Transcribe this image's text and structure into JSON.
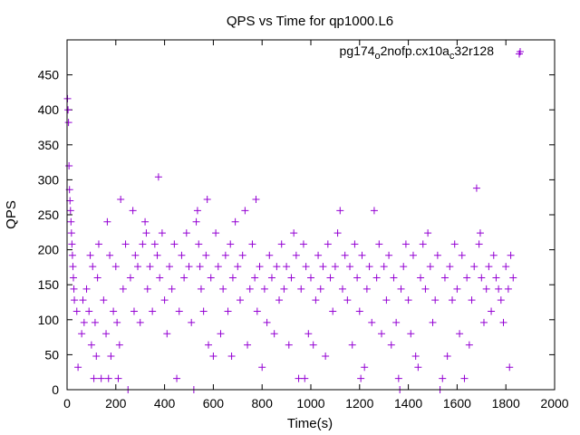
{
  "chart_data": {
    "type": "scatter",
    "title": "QPS vs Time for qp1000.L6",
    "xlabel": "Time(s)",
    "ylabel": "QPS",
    "xlim": [
      0,
      2000
    ],
    "ylim": [
      0,
      500
    ],
    "xticks": [
      0,
      200,
      400,
      600,
      800,
      1000,
      1200,
      1400,
      1600,
      1800,
      2000
    ],
    "yticks": [
      0,
      50,
      100,
      150,
      200,
      250,
      300,
      350,
      400,
      450
    ],
    "xtick_labels": [
      "0",
      "200",
      "400",
      "600",
      "800",
      "1000",
      "1200",
      "1400",
      "1600",
      "1800",
      "2000"
    ],
    "ytick_labels": [
      "0",
      "50",
      "100",
      "150",
      "200",
      "250",
      "300",
      "350",
      "400",
      "450"
    ],
    "grid": false,
    "legend_position": "top-right",
    "marker": "+",
    "series": [
      {
        "name": "pg174_o2nofp.cx10a_c32r128",
        "legend": {
          "base1": "pg174",
          "sub1": "o",
          "mid": "2nofp.cx10a",
          "sub2": "c",
          "end": "32r128"
        },
        "color": "#9400d3",
        "points": [
          [
            2,
            416
          ],
          [
            4,
            400
          ],
          [
            6,
            382
          ],
          [
            8,
            320
          ],
          [
            10,
            286
          ],
          [
            12,
            270
          ],
          [
            14,
            256
          ],
          [
            16,
            240
          ],
          [
            18,
            224
          ],
          [
            20,
            208
          ],
          [
            22,
            192
          ],
          [
            24,
            176
          ],
          [
            26,
            160
          ],
          [
            28,
            144
          ],
          [
            30,
            128
          ],
          [
            40,
            112
          ],
          [
            45,
            32
          ],
          [
            60,
            80
          ],
          [
            65,
            128
          ],
          [
            70,
            96
          ],
          [
            80,
            144
          ],
          [
            90,
            112
          ],
          [
            95,
            192
          ],
          [
            100,
            64
          ],
          [
            105,
            176
          ],
          [
            110,
            16
          ],
          [
            115,
            96
          ],
          [
            120,
            48
          ],
          [
            125,
            160
          ],
          [
            130,
            208
          ],
          [
            140,
            16
          ],
          [
            150,
            128
          ],
          [
            160,
            80
          ],
          [
            165,
            240
          ],
          [
            170,
            16
          ],
          [
            175,
            192
          ],
          [
            180,
            48
          ],
          [
            190,
            112
          ],
          [
            200,
            176
          ],
          [
            205,
            96
          ],
          [
            210,
            16
          ],
          [
            215,
            64
          ],
          [
            220,
            272
          ],
          [
            230,
            144
          ],
          [
            240,
            208
          ],
          [
            250,
            0
          ],
          [
            260,
            160
          ],
          [
            270,
            256
          ],
          [
            275,
            112
          ],
          [
            280,
            192
          ],
          [
            290,
            176
          ],
          [
            300,
            96
          ],
          [
            310,
            208
          ],
          [
            320,
            240
          ],
          [
            325,
            224
          ],
          [
            330,
            144
          ],
          [
            340,
            176
          ],
          [
            350,
            112
          ],
          [
            360,
            208
          ],
          [
            370,
            192
          ],
          [
            375,
            304
          ],
          [
            380,
            160
          ],
          [
            390,
            224
          ],
          [
            400,
            128
          ],
          [
            410,
            80
          ],
          [
            420,
            176
          ],
          [
            430,
            144
          ],
          [
            440,
            208
          ],
          [
            450,
            16
          ],
          [
            460,
            112
          ],
          [
            470,
            192
          ],
          [
            480,
            160
          ],
          [
            490,
            224
          ],
          [
            500,
            176
          ],
          [
            510,
            96
          ],
          [
            520,
            0
          ],
          [
            530,
            240
          ],
          [
            535,
            256
          ],
          [
            540,
            208
          ],
          [
            545,
            176
          ],
          [
            550,
            144
          ],
          [
            560,
            112
          ],
          [
            570,
            192
          ],
          [
            575,
            272
          ],
          [
            580,
            64
          ],
          [
            590,
            160
          ],
          [
            600,
            48
          ],
          [
            610,
            224
          ],
          [
            620,
            176
          ],
          [
            630,
            80
          ],
          [
            640,
            144
          ],
          [
            650,
            192
          ],
          [
            660,
            112
          ],
          [
            670,
            208
          ],
          [
            675,
            48
          ],
          [
            680,
            160
          ],
          [
            690,
            240
          ],
          [
            700,
            176
          ],
          [
            710,
            128
          ],
          [
            720,
            192
          ],
          [
            730,
            256
          ],
          [
            740,
            64
          ],
          [
            750,
            144
          ],
          [
            760,
            208
          ],
          [
            770,
            160
          ],
          [
            775,
            272
          ],
          [
            780,
            112
          ],
          [
            790,
            176
          ],
          [
            800,
            32
          ],
          [
            810,
            144
          ],
          [
            820,
            96
          ],
          [
            830,
            192
          ],
          [
            840,
            160
          ],
          [
            850,
            80
          ],
          [
            860,
            176
          ],
          [
            870,
            128
          ],
          [
            880,
            208
          ],
          [
            890,
            144
          ],
          [
            900,
            176
          ],
          [
            910,
            64
          ],
          [
            920,
            160
          ],
          [
            930,
            224
          ],
          [
            940,
            192
          ],
          [
            950,
            16
          ],
          [
            960,
            144
          ],
          [
            970,
            208
          ],
          [
            975,
            16
          ],
          [
            980,
            176
          ],
          [
            990,
            80
          ],
          [
            1000,
            160
          ],
          [
            1010,
            64
          ],
          [
            1020,
            128
          ],
          [
            1030,
            192
          ],
          [
            1040,
            144
          ],
          [
            1050,
            176
          ],
          [
            1060,
            48
          ],
          [
            1070,
            208
          ],
          [
            1080,
            160
          ],
          [
            1090,
            112
          ],
          [
            1100,
            176
          ],
          [
            1110,
            224
          ],
          [
            1120,
            256
          ],
          [
            1130,
            144
          ],
          [
            1140,
            192
          ],
          [
            1150,
            128
          ],
          [
            1160,
            176
          ],
          [
            1170,
            64
          ],
          [
            1180,
            208
          ],
          [
            1190,
            160
          ],
          [
            1200,
            112
          ],
          [
            1205,
            16
          ],
          [
            1210,
            192
          ],
          [
            1220,
            32
          ],
          [
            1230,
            144
          ],
          [
            1240,
            176
          ],
          [
            1250,
            96
          ],
          [
            1260,
            256
          ],
          [
            1270,
            160
          ],
          [
            1280,
            208
          ],
          [
            1290,
            80
          ],
          [
            1300,
            176
          ],
          [
            1310,
            128
          ],
          [
            1320,
            192
          ],
          [
            1330,
            64
          ],
          [
            1340,
            160
          ],
          [
            1350,
            96
          ],
          [
            1360,
            16
          ],
          [
            1365,
            0
          ],
          [
            1370,
            144
          ],
          [
            1380,
            176
          ],
          [
            1390,
            208
          ],
          [
            1400,
            128
          ],
          [
            1410,
            80
          ],
          [
            1420,
            192
          ],
          [
            1430,
            48
          ],
          [
            1440,
            32
          ],
          [
            1450,
            160
          ],
          [
            1460,
            208
          ],
          [
            1470,
            144
          ],
          [
            1480,
            224
          ],
          [
            1490,
            176
          ],
          [
            1500,
            96
          ],
          [
            1510,
            128
          ],
          [
            1520,
            192
          ],
          [
            1530,
            0
          ],
          [
            1540,
            16
          ],
          [
            1550,
            160
          ],
          [
            1560,
            48
          ],
          [
            1570,
            176
          ],
          [
            1580,
            128
          ],
          [
            1590,
            208
          ],
          [
            1600,
            144
          ],
          [
            1610,
            80
          ],
          [
            1620,
            192
          ],
          [
            1630,
            16
          ],
          [
            1640,
            160
          ],
          [
            1650,
            64
          ],
          [
            1660,
            128
          ],
          [
            1670,
            176
          ],
          [
            1680,
            288
          ],
          [
            1690,
            208
          ],
          [
            1695,
            224
          ],
          [
            1700,
            160
          ],
          [
            1710,
            96
          ],
          [
            1720,
            144
          ],
          [
            1730,
            176
          ],
          [
            1740,
            112
          ],
          [
            1750,
            192
          ],
          [
            1760,
            160
          ],
          [
            1770,
            144
          ],
          [
            1780,
            128
          ],
          [
            1790,
            96
          ],
          [
            1800,
            176
          ],
          [
            1810,
            144
          ],
          [
            1815,
            32
          ],
          [
            1820,
            192
          ],
          [
            1830,
            160
          ],
          [
            1855,
            480
          ]
        ]
      }
    ]
  }
}
